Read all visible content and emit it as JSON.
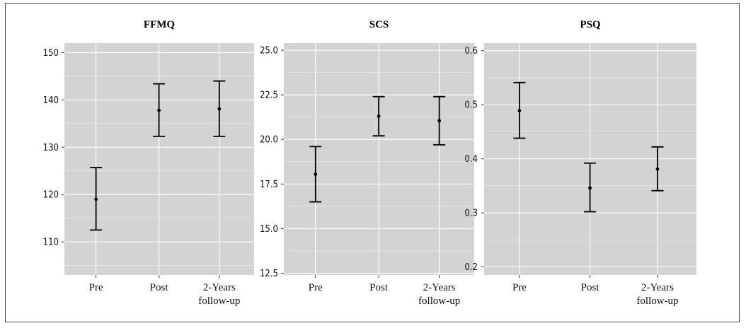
{
  "chart_data": [
    {
      "type": "errorbar",
      "title": "FFMQ",
      "categories": [
        "Pre",
        "Post",
        "2-Years\nfollow-up"
      ],
      "values": [
        119.0,
        137.8,
        138.1
      ],
      "lower": [
        112.5,
        132.3,
        132.3
      ],
      "upper": [
        125.7,
        143.4,
        144.0
      ],
      "ylim": [
        103,
        152
      ],
      "yticks": [
        110,
        120,
        130,
        140,
        150
      ],
      "yticklabels": [
        "110",
        "120",
        "130",
        "140",
        "150"
      ],
      "grid": true
    },
    {
      "type": "errorbar",
      "title": "SCS",
      "categories": [
        "Pre",
        "Post",
        "2-Years\nfollow-up"
      ],
      "values": [
        18.05,
        21.3,
        21.05
      ],
      "lower": [
        16.5,
        20.2,
        19.7
      ],
      "upper": [
        19.6,
        22.4,
        22.4
      ],
      "ylim": [
        12.4,
        25.4
      ],
      "yticks": [
        12.5,
        15.0,
        17.5,
        20.0,
        22.5,
        25.0
      ],
      "yticklabels": [
        "12.5",
        "15.0",
        "17.5",
        "20.0",
        "22.5",
        "25.0"
      ],
      "grid": true
    },
    {
      "type": "errorbar",
      "title": "PSQ",
      "categories": [
        "Pre",
        "Post",
        "2-Years\nfollow-up"
      ],
      "values": [
        0.489,
        0.346,
        0.381
      ],
      "lower": [
        0.438,
        0.302,
        0.341
      ],
      "upper": [
        0.541,
        0.392,
        0.422
      ],
      "ylim": [
        0.185,
        0.614
      ],
      "yticks": [
        0.2,
        0.3,
        0.4,
        0.5,
        0.6
      ],
      "yticklabels": [
        "0.2",
        "0.3",
        "0.4",
        "0.5",
        "0.6"
      ],
      "grid": true
    }
  ],
  "colors": {
    "panel_background": "#d3d3d3",
    "grid": "#ffffff",
    "marks": "#000000"
  }
}
